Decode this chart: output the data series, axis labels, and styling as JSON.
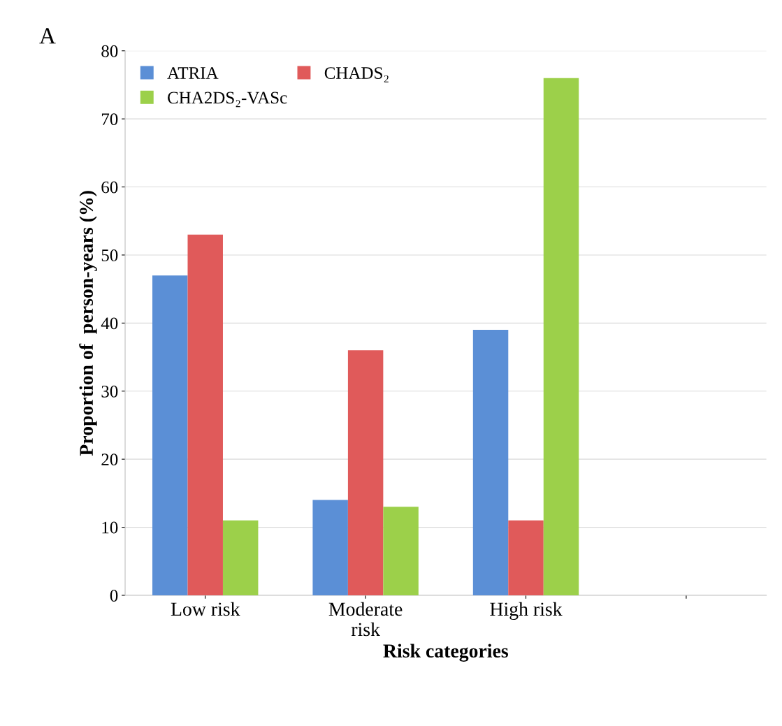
{
  "chart_data": {
    "type": "bar",
    "xlabel": "Risk categories",
    "ylabel": "Proportion of  person-years (%)",
    "annotations": [
      "A"
    ],
    "categories": [
      "Low risk",
      "Moderate\nrisk",
      "High risk",
      null
    ],
    "series": [
      {
        "name": "ATRIA",
        "color": "#5b8fd6",
        "values": [
          47,
          14,
          39,
          null
        ]
      },
      {
        "name": "CHADS₂",
        "color": "#e05a5a",
        "values": [
          53,
          36,
          11,
          null
        ]
      },
      {
        "name": "CHA2DS₂-VASc",
        "color": "#9cd04a",
        "values": [
          11,
          13,
          76,
          null
        ]
      }
    ],
    "ylim": [
      0,
      80
    ],
    "yticks": [
      0,
      10,
      20,
      30,
      40,
      50,
      60,
      70,
      80
    ],
    "grid": "y",
    "legend": "top left"
  }
}
